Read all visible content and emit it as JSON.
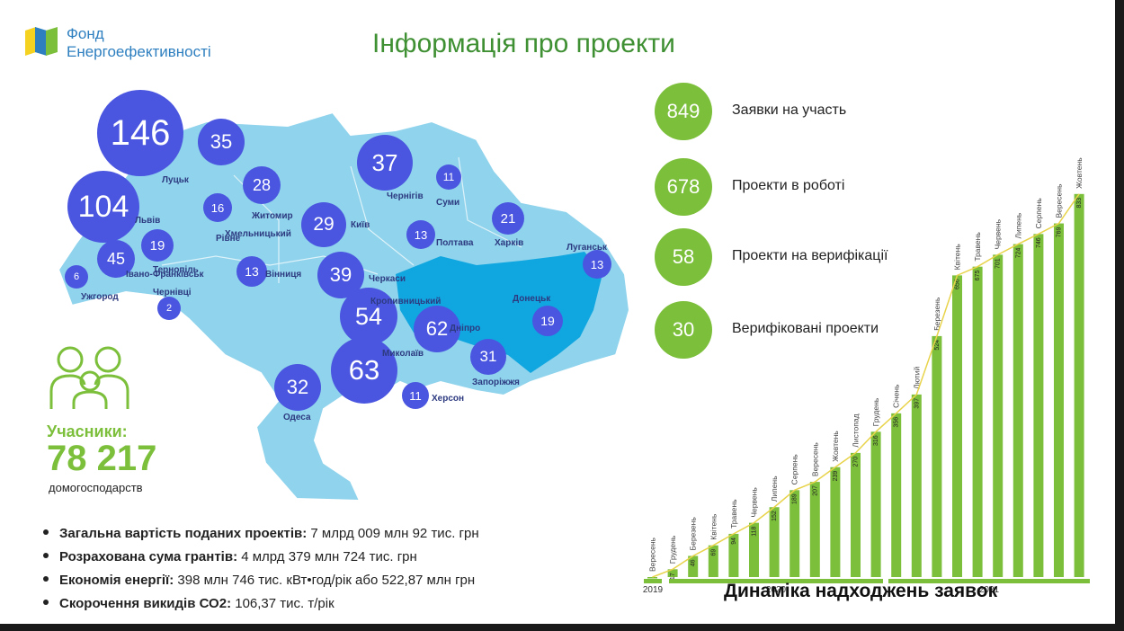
{
  "logo": {
    "line1": "Фонд",
    "line2": "Енергоефективності",
    "colors": [
      "#f4d21f",
      "#2e7fc0",
      "#7cbf3b"
    ]
  },
  "page_title": "Інформація про проекти",
  "map_bubbles": [
    {
      "value": "146",
      "city": "Луцьк"
    },
    {
      "value": "35",
      "city": "Рівне"
    },
    {
      "value": "104",
      "city": "Львів"
    },
    {
      "value": "28",
      "city": "Житомир"
    },
    {
      "value": "16",
      "city": "Хмельницький"
    },
    {
      "value": "19",
      "city": "Тернопіль"
    },
    {
      "value": "45",
      "city": "Івано-Франківськ"
    },
    {
      "value": "6",
      "city": "Ужгород"
    },
    {
      "value": "2",
      "city": "Чернівці"
    },
    {
      "value": "13",
      "city": "Вінниця"
    },
    {
      "value": "37",
      "city": "Чернігів"
    },
    {
      "value": "11",
      "city": "Суми"
    },
    {
      "value": "29",
      "city": "Київ"
    },
    {
      "value": "13",
      "city": "Полтава"
    },
    {
      "value": "21",
      "city": "Харків"
    },
    {
      "value": "13",
      "city": "Луганськ"
    },
    {
      "value": "39",
      "city": "Черкаси"
    },
    {
      "value": "54",
      "city": "Кропивницький"
    },
    {
      "value": "62",
      "city": "Дніпро"
    },
    {
      "value": "19",
      "city": "Донецьк"
    },
    {
      "value": "63",
      "city": "Миколаїв"
    },
    {
      "value": "31",
      "city": "Запоріжжя"
    },
    {
      "value": "32",
      "city": "Одеса"
    },
    {
      "value": "11",
      "city": "Херсон"
    }
  ],
  "participants": {
    "label": "Учасники:",
    "value": "78 217",
    "unit": "домогосподарств"
  },
  "stats": [
    {
      "label": "Загальна вартість поданих проектів:",
      "value": " 7 млрд 009 млн 92 тис. грн"
    },
    {
      "label": "Розрахована сума грантів:",
      "value": " 4 млрд 379 млн 724 тис. грн"
    },
    {
      "label": "Економія енергії:",
      "value": " 398 млн 746 тис. кВт•год/рік або 522,87 млн грн"
    },
    {
      "label": "Скорочення викидів СО2:",
      "value": " 106,37 тис. т/рік"
    }
  ],
  "kpis": [
    {
      "value": "849",
      "label": "Заявки на участь"
    },
    {
      "value": "678",
      "label": "Проекти в роботі"
    },
    {
      "value": "58",
      "label": "Проекти на верифікації"
    },
    {
      "value": "30",
      "label": "Верифіковані проекти"
    }
  ],
  "chart_data": {
    "type": "bar",
    "title": "Динаміка надходжень заявок",
    "categories": [
      "Вересень",
      "Грудень",
      "Березень",
      "Квітень",
      "Травень",
      "Червень",
      "Липень",
      "Серпень",
      "Вересень",
      "Жовтень",
      "Листопад",
      "Грудень",
      "Січень",
      "Лютий",
      "Березень",
      "Квітень",
      "Травень",
      "Червень",
      "Липень",
      "Серпень",
      "Вересень",
      "Жовтень"
    ],
    "values": [
      0,
      17,
      46,
      69,
      94,
      118,
      152,
      189,
      207,
      239,
      270,
      316,
      356,
      397,
      524,
      656,
      675,
      701,
      724,
      746,
      769,
      833
    ],
    "value_labels": [
      "",
      "17",
      "46",
      "69",
      "94",
      "118",
      "152",
      "189",
      "207",
      "239",
      "270",
      "316",
      "356",
      "397",
      "524",
      "656",
      "675",
      "701",
      "724",
      "746",
      "769",
      "833"
    ],
    "years": [
      "2019",
      "2020",
      "2021"
    ],
    "bar_color": "#7cbf3b",
    "line_color": "#e8d34a",
    "ylim": [
      0,
      860
    ]
  }
}
